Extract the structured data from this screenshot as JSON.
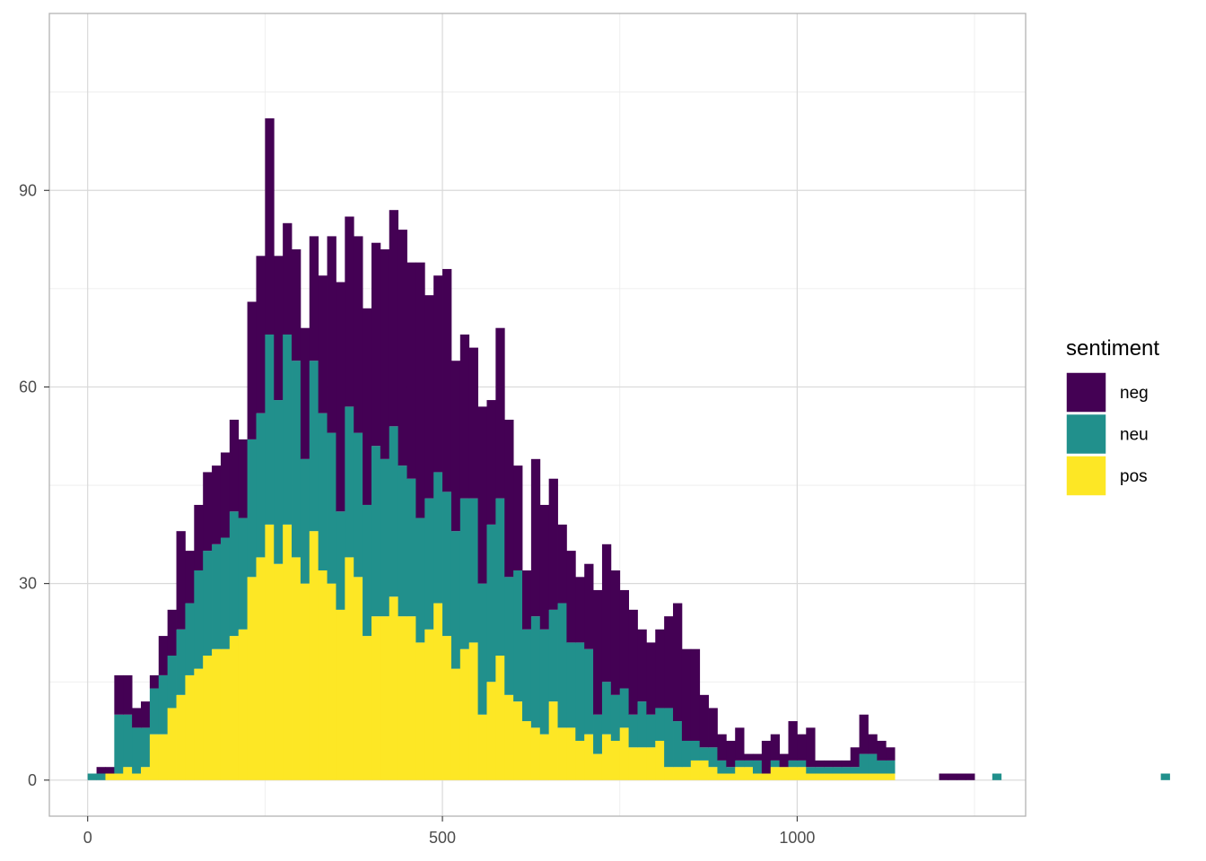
{
  "chart_data": {
    "type": "bar",
    "stacked": true,
    "title": "",
    "xlabel": "",
    "ylabel": "",
    "xlim": [
      -54,
      1322
    ],
    "ylim": [
      -5.5,
      117
    ],
    "x_ticks": [
      0,
      500,
      1000
    ],
    "y_ticks": [
      0,
      30,
      60,
      90
    ],
    "grid": true,
    "legend": {
      "title": "sentiment",
      "position": "right"
    },
    "bin_start": 0,
    "bin_width": 12.5,
    "series": [
      {
        "name": "neg",
        "color": "#440154",
        "values": [
          0,
          1,
          1,
          6,
          6,
          3,
          4,
          2,
          6,
          7,
          15,
          8,
          10,
          12,
          12,
          13,
          14,
          12,
          21,
          24,
          33,
          22,
          17,
          17,
          20,
          19,
          21,
          30,
          35,
          29,
          30,
          30,
          31,
          32,
          33,
          36,
          33,
          39,
          31,
          30,
          34,
          26,
          25,
          23,
          27,
          19,
          26,
          24,
          16,
          9,
          24,
          19,
          20,
          12,
          14,
          10,
          13,
          19,
          21,
          19,
          15,
          16,
          11,
          11,
          12,
          14,
          18,
          14,
          14,
          8,
          6,
          4,
          4,
          5,
          1,
          1,
          5,
          4,
          2,
          6,
          4,
          6,
          1,
          1,
          1,
          1,
          3,
          6,
          3,
          3,
          2,
          0,
          0,
          0,
          0,
          0,
          1,
          1,
          1,
          1,
          0,
          0,
          0,
          0,
          0,
          0,
          0,
          0,
          0,
          0,
          0,
          0,
          0,
          0,
          0,
          0,
          0,
          0,
          0,
          0,
          0,
          0
        ]
      },
      {
        "name": "neu",
        "color": "#21908C",
        "values": [
          1,
          1,
          0,
          9,
          8,
          7,
          6,
          7,
          9,
          8,
          10,
          11,
          15,
          16,
          16,
          17,
          19,
          17,
          21,
          22,
          29,
          25,
          29,
          30,
          19,
          26,
          24,
          23,
          15,
          23,
          22,
          20,
          26,
          24,
          26,
          23,
          21,
          19,
          20,
          20,
          22,
          21,
          23,
          22,
          20,
          24,
          24,
          18,
          20,
          14,
          17,
          16,
          14,
          19,
          13,
          15,
          13,
          6,
          8,
          7,
          6,
          5,
          7,
          5,
          5,
          9,
          7,
          4,
          3,
          2,
          3,
          2,
          1,
          1,
          1,
          2,
          0,
          1,
          0,
          1,
          1,
          1,
          1,
          1,
          1,
          1,
          1,
          3,
          3,
          2,
          2,
          0,
          0,
          0,
          0,
          0,
          0,
          0,
          0,
          0,
          0,
          0,
          1,
          0,
          0,
          0,
          0,
          0,
          0,
          0,
          0,
          0,
          0,
          0,
          0,
          0,
          0,
          0,
          0,
          0,
          0,
          1
        ]
      },
      {
        "name": "pos",
        "color": "#FDE725",
        "values": [
          0,
          0,
          1,
          1,
          2,
          1,
          2,
          7,
          7,
          11,
          13,
          16,
          17,
          19,
          20,
          20,
          22,
          23,
          31,
          34,
          39,
          33,
          39,
          34,
          30,
          38,
          32,
          30,
          26,
          34,
          31,
          22,
          25,
          25,
          28,
          25,
          25,
          21,
          23,
          27,
          22,
          17,
          20,
          21,
          10,
          15,
          19,
          13,
          12,
          9,
          8,
          7,
          12,
          8,
          8,
          6,
          7,
          4,
          7,
          6,
          8,
          5,
          5,
          5,
          6,
          2,
          2,
          2,
          3,
          3,
          2,
          1,
          1,
          2,
          2,
          1,
          1,
          2,
          2,
          2,
          2,
          1,
          1,
          1,
          1,
          1,
          1,
          1,
          1,
          1,
          1,
          0,
          0,
          0,
          0,
          0,
          0,
          0,
          0,
          0,
          0,
          0,
          0,
          0,
          0,
          0,
          0,
          0,
          0,
          0,
          0,
          0,
          0,
          0,
          0,
          0,
          0,
          0,
          0,
          0,
          0,
          0
        ]
      }
    ]
  }
}
